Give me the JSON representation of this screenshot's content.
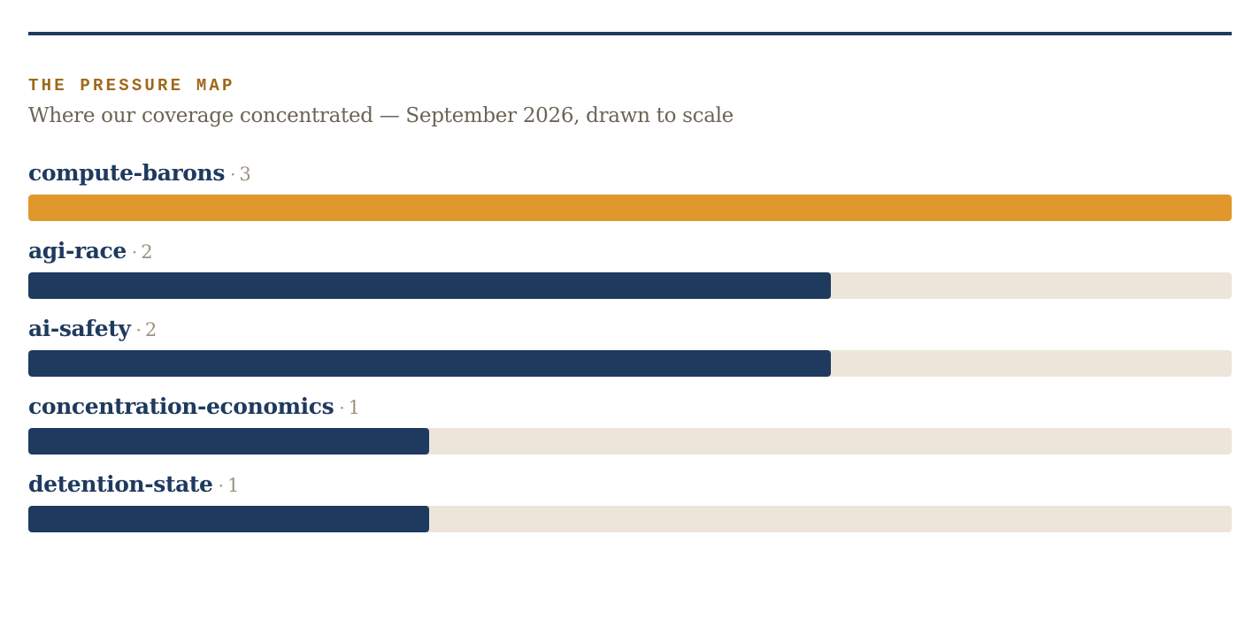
{
  "header": {
    "kicker": "THE PRESSURE MAP",
    "subtitle": "Where our coverage concentrated — September 2026, drawn to scale"
  },
  "colors": {
    "accent": "#1f3a5f",
    "highlight": "#e0982c",
    "track": "#ede5da",
    "kicker": "#a0681a"
  },
  "chart_data": {
    "type": "bar",
    "orientation": "horizontal",
    "title": "THE PRESSURE MAP",
    "subtitle": "Where our coverage concentrated — September 2026, drawn to scale",
    "categories": [
      "compute-barons",
      "agi-race",
      "ai-safety",
      "concentration-economics",
      "detention-state"
    ],
    "values": [
      3,
      2,
      2,
      1,
      1
    ],
    "highlighted_category": "compute-barons",
    "xlim": [
      0,
      3
    ],
    "separator": "·",
    "grid": false,
    "legend": "none"
  }
}
